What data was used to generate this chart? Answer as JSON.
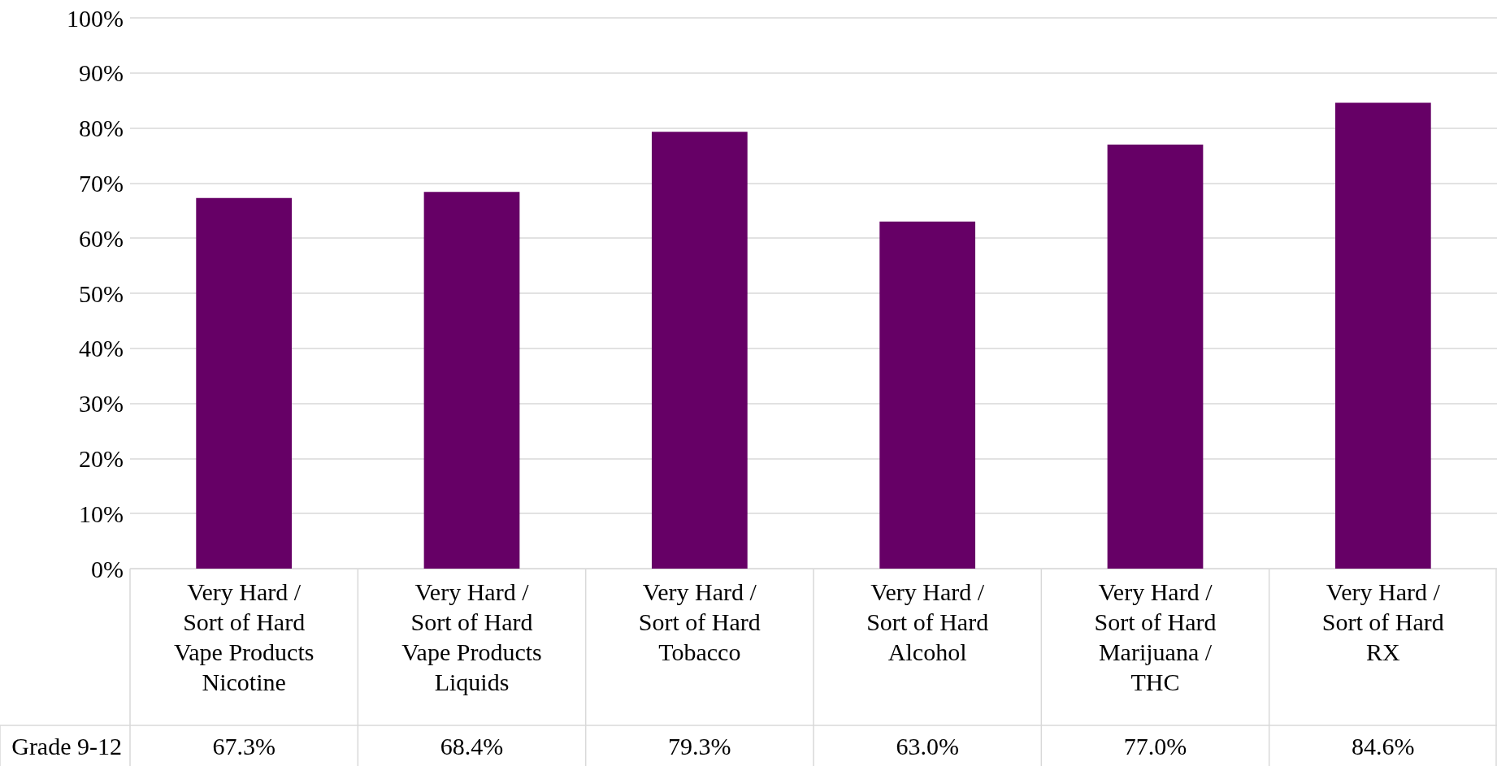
{
  "chart_data": {
    "type": "bar",
    "categories": [
      "Very Hard /\nSort of Hard\nVape Products\nNicotine",
      "Very Hard /\nSort of Hard\nVape Products\nLiquids",
      "Very Hard /\nSort of Hard\nTobacco",
      "Very Hard /\nSort of Hard\nAlcohol",
      "Very Hard /\nSort of Hard\nMarijuana /\nTHC",
      "Very Hard /\nSort of Hard\nRX"
    ],
    "series": [
      {
        "name": "Grade 9-12",
        "color": "#660066",
        "values": [
          67.3,
          68.4,
          79.3,
          63.0,
          77.0,
          84.6
        ],
        "value_labels": [
          "67.3%",
          "68.4%",
          "79.3%",
          "63.0%",
          "77.0%",
          "84.6%"
        ]
      }
    ],
    "ylim": [
      0,
      100
    ],
    "yticks": [
      {
        "value": 0,
        "label": "0%"
      },
      {
        "value": 10,
        "label": "10%"
      },
      {
        "value": 20,
        "label": "20%"
      },
      {
        "value": 30,
        "label": "30%"
      },
      {
        "value": 40,
        "label": "40%"
      },
      {
        "value": 50,
        "label": "50%"
      },
      {
        "value": 60,
        "label": "60%"
      },
      {
        "value": 70,
        "label": "70%"
      },
      {
        "value": 80,
        "label": "80%"
      },
      {
        "value": 90,
        "label": "90%"
      },
      {
        "value": 100,
        "label": "100%"
      }
    ],
    "grid": "y",
    "legend": false
  }
}
